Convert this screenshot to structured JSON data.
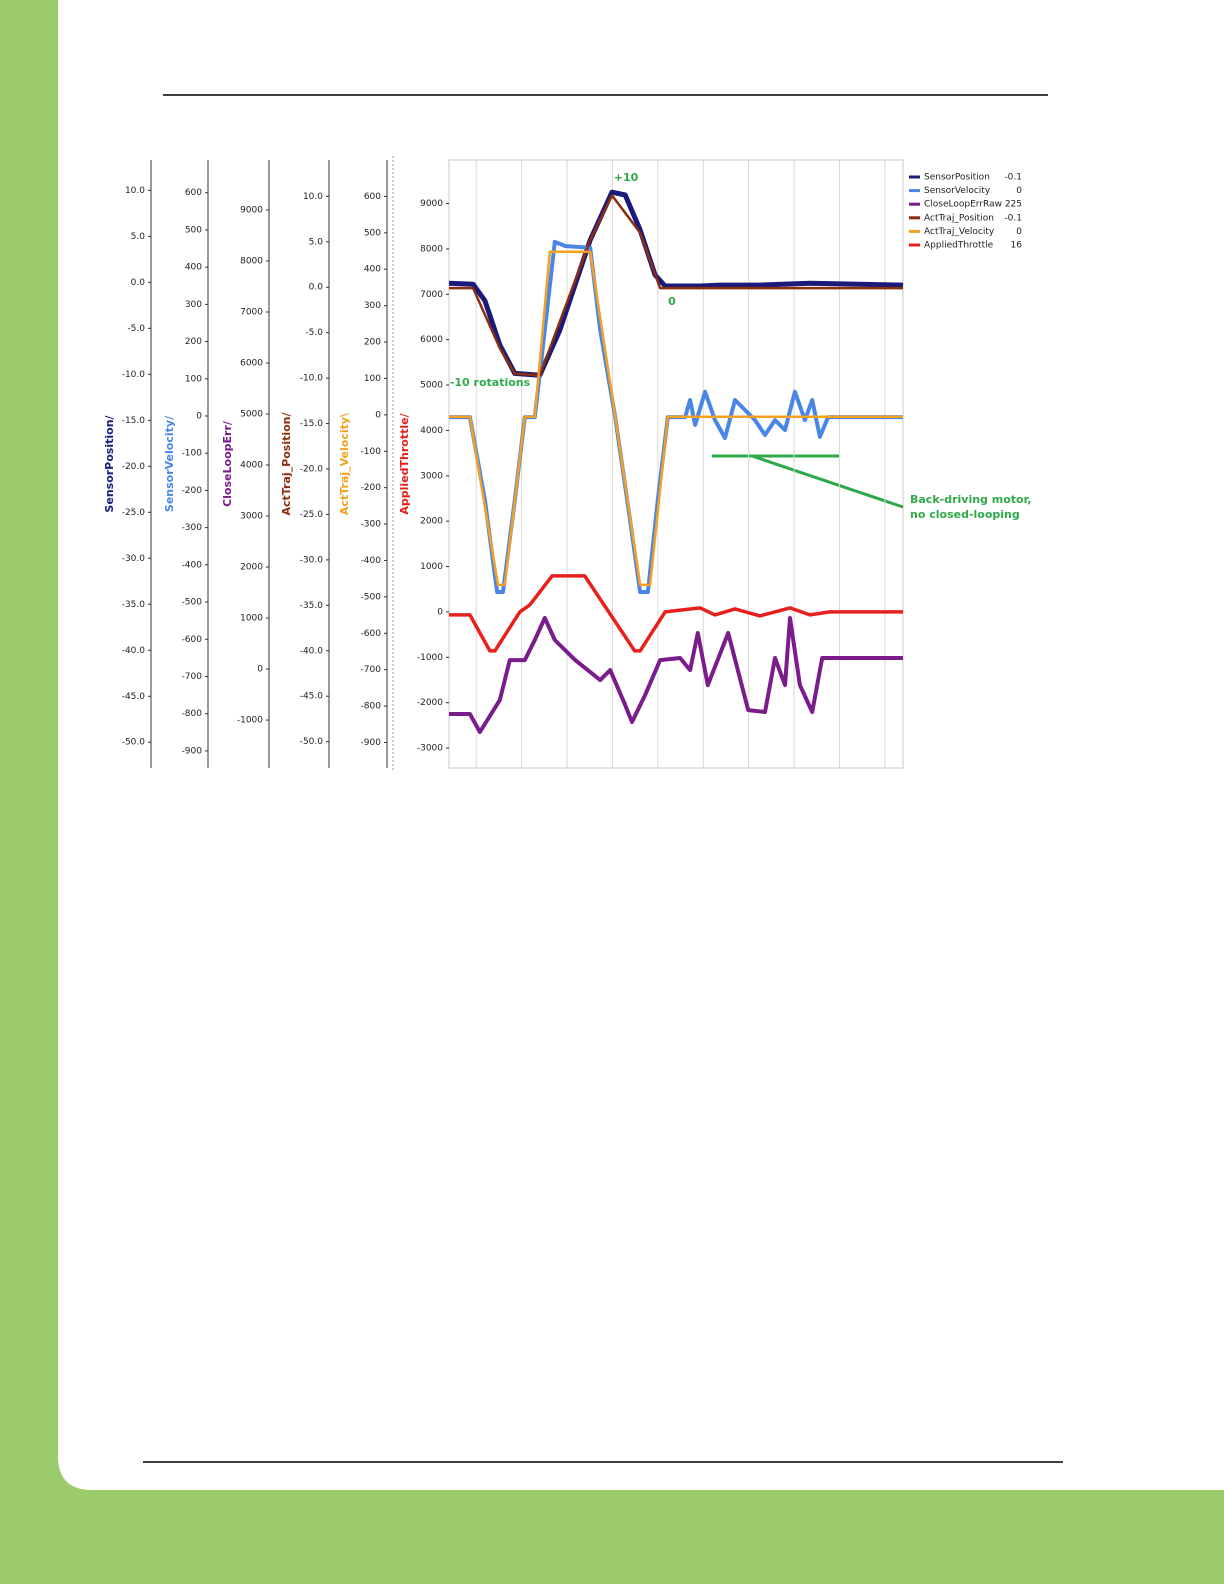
{
  "chart_data": {
    "type": "line",
    "xlim": [
      -6,
      94
    ],
    "xticks": [
      0,
      10,
      20,
      30,
      40,
      50,
      60,
      70,
      80,
      90
    ],
    "grid": true,
    "legend": "top-right",
    "annotations": [
      {
        "text": "+10"
      },
      {
        "text": "0"
      },
      {
        "text": "-10 rotations"
      },
      {
        "lines": [
          "Back-driving motor,",
          "no closed-looping"
        ]
      }
    ],
    "axes": [
      {
        "title": "SensorPosition/",
        "color": "#1a1a7a",
        "ylim": [
          -52.8,
          13.3
        ],
        "yticks": [
          {
            "value": 10,
            "label": "10.0"
          },
          {
            "value": 5,
            "label": "5.0"
          },
          {
            "value": 0,
            "label": "0.0"
          },
          {
            "value": -5,
            "label": "-5.0"
          },
          {
            "value": -10,
            "label": "-10.0"
          },
          {
            "value": -15,
            "label": "-15.0"
          },
          {
            "value": -20,
            "label": "-20.0"
          },
          {
            "value": -25,
            "label": "-25.0"
          },
          {
            "value": -30,
            "label": "-30.0"
          },
          {
            "value": -35,
            "label": "-35.0"
          },
          {
            "value": -40,
            "label": "-40.0"
          },
          {
            "value": -45,
            "label": "-45.0"
          },
          {
            "value": -50,
            "label": "-50.0"
          }
        ]
      },
      {
        "title": "SensorVelocity/",
        "color": "#4a86e8",
        "ylim": [
          -946,
          688
        ],
        "yticks": [
          600,
          500,
          400,
          300,
          200,
          100,
          0,
          -100,
          -200,
          -300,
          -400,
          -500,
          -600,
          -700,
          -800,
          -900
        ]
      },
      {
        "title": "CloseLoopErr/",
        "color": "#7b1c8c",
        "ylim": [
          -1940,
          9980
        ],
        "yticks": [
          9000,
          8000,
          7000,
          6000,
          5000,
          4000,
          3000,
          2000,
          1000,
          0,
          -1000
        ]
      },
      {
        "title": "ActTraj_Position/",
        "color": "#8b2e0c",
        "ylim": [
          -52.9,
          14.0
        ],
        "yticks": [
          {
            "value": 10,
            "label": "10.0"
          },
          {
            "value": 5,
            "label": "5.0"
          },
          {
            "value": 0,
            "label": "0.0"
          },
          {
            "value": -5,
            "label": "-5.0"
          },
          {
            "value": -10,
            "label": "-10.0"
          },
          {
            "value": -15,
            "label": "-15.0"
          },
          {
            "value": -20,
            "label": "-20.0"
          },
          {
            "value": -25,
            "label": "-25.0"
          },
          {
            "value": -30,
            "label": "-30.0"
          },
          {
            "value": -35,
            "label": "-35.0"
          },
          {
            "value": -40,
            "label": "-40.0"
          },
          {
            "value": -45,
            "label": "-45.0"
          },
          {
            "value": -50,
            "label": "-50.0"
          }
        ]
      },
      {
        "title": "ActTraj_Velocity\\",
        "color": "#f5a020",
        "ylim": [
          -970,
          700
        ],
        "yticks": [
          600,
          500,
          400,
          300,
          200,
          100,
          0,
          -100,
          -200,
          -300,
          -400,
          -500,
          -600,
          -700,
          -800,
          -900
        ]
      },
      {
        "title": "AppliedThrottle/",
        "color": "#e8201c",
        "ylim": [
          -3440,
          9960
        ],
        "yticks": [
          9000,
          8000,
          7000,
          6000,
          5000,
          4000,
          3000,
          2000,
          1000,
          0,
          -1000,
          -2000,
          -3000
        ]
      }
    ],
    "series": [
      {
        "name": "SensorPosition",
        "current": -0.1,
        "color": "#1a1a7a",
        "axis": 0,
        "x": [
          -6,
          -0.7,
          1.9,
          5.2,
          8.5,
          14.0,
          18.4,
          25.1,
          29.9,
          32.8,
          36.1,
          39.4,
          41.6,
          49.3,
          53.7,
          62.5,
          73.5,
          94.0
        ],
        "values": [
          -0.1,
          -0.2,
          -2.0,
          -6.8,
          -9.9,
          -10.1,
          -5.2,
          4.6,
          9.8,
          9.5,
          5.7,
          0.8,
          -0.4,
          -0.4,
          -0.3,
          -0.3,
          -0.1,
          -0.3
        ]
      },
      {
        "name": "SensorVelocity",
        "current": 0,
        "color": "#4a86e8",
        "axis": 1,
        "x": [
          -6,
          -1.4,
          1.9,
          4.6,
          5.9,
          8.5,
          10.7,
          12.9,
          15.1,
          17.3,
          19.6,
          25.1,
          27.3,
          30.6,
          33.9,
          36.1,
          37.8,
          40.0,
          42.2,
          46.0,
          47.1,
          48.2,
          50.4,
          52.6,
          54.8,
          57.0,
          59.2,
          61.4,
          63.6,
          65.8,
          68.0,
          70.2,
          72.4,
          74.0,
          75.7,
          77.5,
          94.0
        ],
        "values": [
          -3,
          -3,
          -226,
          -473,
          -473,
          -226,
          -3,
          -3,
          231,
          468,
          457,
          452,
          231,
          -3,
          -280,
          -473,
          -473,
          -226,
          -3,
          -3,
          43,
          -24,
          65,
          -11,
          -59,
          43,
          16,
          -11,
          -51,
          -11,
          -38,
          65,
          -11,
          43,
          -56,
          -3,
          -3
        ]
      },
      {
        "name": "CloseLoopErrRaw",
        "current": 225,
        "color": "#7b1c8c",
        "axis": 2,
        "x": [
          -6,
          -1.4,
          0.8,
          5.2,
          7.4,
          10.7,
          12.9,
          15.1,
          17.3,
          21.8,
          27.3,
          29.5,
          32.8,
          34.3,
          37.2,
          40.5,
          44.9,
          47.1,
          48.8,
          51.0,
          55.5,
          59.9,
          63.6,
          65.8,
          68.0,
          69.1,
          71.3,
          74.0,
          76.2,
          94.0
        ],
        "values": [
          -882,
          -882,
          -1235,
          -608,
          176,
          176,
          569,
          1000,
          569,
          176,
          -216,
          -20,
          -706,
          -1039,
          -510,
          176,
          216,
          -20,
          706,
          -314,
          706,
          -804,
          -843,
          216,
          -314,
          1000,
          -314,
          -843,
          216,
          216
        ]
      },
      {
        "name": "ActTraj_Position",
        "current": -0.1,
        "color": "#8b2e0c",
        "axis": 3,
        "x": [
          -6,
          -0.7,
          5.2,
          8.5,
          14.0,
          25.1,
          29.9,
          36.1,
          40.5,
          94.0
        ],
        "values": [
          -0.1,
          -0.1,
          -6.7,
          -9.5,
          -9.7,
          5.2,
          10.1,
          6.0,
          -0.1,
          -0.1
        ]
      },
      {
        "name": "ActTraj_Velocity",
        "current": 0,
        "color": "#f5a020",
        "axis": 4,
        "x": [
          -6,
          -1.4,
          4.8,
          6.3,
          10.7,
          12.9,
          16.2,
          25.1,
          30.6,
          36.1,
          38.3,
          42.2,
          94.0
        ],
        "values": [
          -5,
          -5,
          -467,
          -467,
          -5,
          -5,
          448,
          448,
          -5,
          -467,
          -467,
          -5,
          -5
        ]
      },
      {
        "name": "AppliedThrottle",
        "current": 16,
        "color": "#e8201c",
        "axis": 5,
        "x": [
          -6,
          -1.4,
          3.0,
          4.1,
          9.6,
          11.8,
          16.7,
          23.9,
          34.9,
          36.1,
          41.6,
          49.3,
          52.6,
          57.0,
          62.5,
          69.1,
          73.5,
          77.9,
          94.0
        ],
        "values": [
          -66,
          -66,
          -859,
          -859,
          0,
          154,
          793,
          793,
          -859,
          -859,
          0,
          88,
          -66,
          66,
          -88,
          88,
          -66,
          0,
          0
        ]
      }
    ]
  }
}
